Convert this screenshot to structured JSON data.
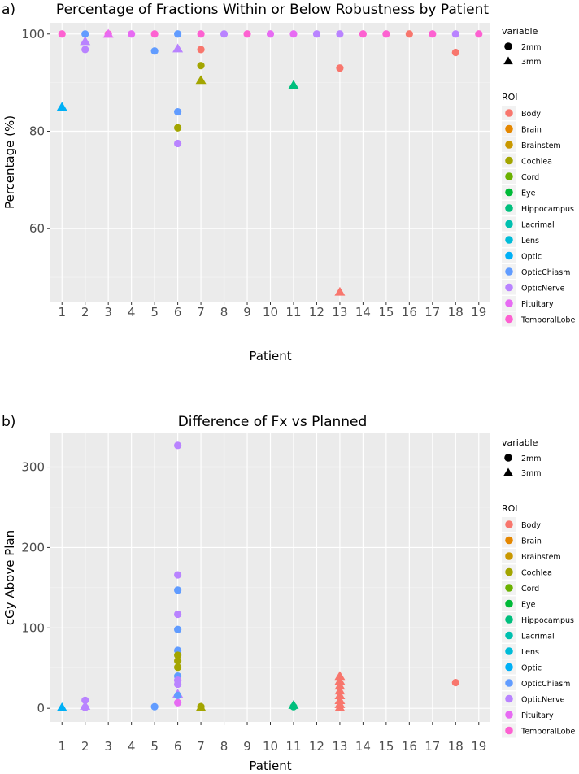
{
  "roi_colors": {
    "Body": "#F8766D",
    "Brain": "#E58700",
    "Brainstem": "#C99800",
    "Cochlea": "#A3A500",
    "Cord": "#6BB100",
    "Eye": "#00BA38",
    "Hippocampus": "#00BF7D",
    "Lacrimal": "#00C0AF",
    "Lens": "#00BCD8",
    "Optic": "#00B0F6",
    "OpticChiasm": "#619CFF",
    "OpticNerve": "#B983FF",
    "Pituitary": "#E76BF3",
    "TemporalLobe": "#FD61D1"
  },
  "chart_data": [
    {
      "type": "scatter",
      "panel_label": "a)",
      "title": "Percentage of Fractions Within or Below Robustness by Patient",
      "xlabel": "Patient",
      "ylabel": "Percentage (%)",
      "x_ticks": [
        "1",
        "2",
        "3",
        "4",
        "5",
        "6",
        "7",
        "8",
        "9",
        "10",
        "11",
        "12",
        "13",
        "14",
        "15",
        "16",
        "17",
        "18",
        "19"
      ],
      "y_ticks": [
        60,
        80,
        100
      ],
      "xlim": [
        0.5,
        19.5
      ],
      "ylim": [
        45,
        102.3
      ],
      "legend": {
        "shape_title": "variable",
        "shape_entries": [
          {
            "label": "2mm",
            "shape": "circle"
          },
          {
            "label": "3mm",
            "shape": "triangle"
          }
        ],
        "color_title": "ROI",
        "color_entries": [
          "Body",
          "Brain",
          "Brainstem",
          "Cochlea",
          "Cord",
          "Eye",
          "Hippocampus",
          "Lacrimal",
          "Lens",
          "Optic",
          "OpticChiasm",
          "OpticNerve",
          "Pituitary",
          "TemporalLobe"
        ]
      },
      "points": [
        {
          "x": 1,
          "y": 100,
          "roi": "TemporalLobe",
          "shape": "circle"
        },
        {
          "x": 1,
          "y": 85,
          "roi": "Optic",
          "shape": "triangle"
        },
        {
          "x": 2,
          "y": 100,
          "roi": "OpticChiasm",
          "shape": "circle"
        },
        {
          "x": 2,
          "y": 98.5,
          "roi": "OpticNerve",
          "shape": "triangle"
        },
        {
          "x": 2,
          "y": 96.8,
          "roi": "OpticNerve",
          "shape": "circle"
        },
        {
          "x": 3,
          "y": 100,
          "roi": "TemporalLobe",
          "shape": "circle"
        },
        {
          "x": 3,
          "y": 100,
          "roi": "Pituitary",
          "shape": "triangle"
        },
        {
          "x": 4,
          "y": 100,
          "roi": "Pituitary",
          "shape": "circle"
        },
        {
          "x": 5,
          "y": 100,
          "roi": "TemporalLobe",
          "shape": "circle"
        },
        {
          "x": 5,
          "y": 96.5,
          "roi": "OpticChiasm",
          "shape": "circle"
        },
        {
          "x": 6,
          "y": 100,
          "roi": "OpticChiasm",
          "shape": "circle"
        },
        {
          "x": 6,
          "y": 97,
          "roi": "OpticNerve",
          "shape": "triangle"
        },
        {
          "x": 6,
          "y": 84,
          "roi": "OpticChiasm",
          "shape": "circle"
        },
        {
          "x": 6,
          "y": 80.7,
          "roi": "Cochlea",
          "shape": "circle"
        },
        {
          "x": 6,
          "y": 77.5,
          "roi": "OpticNerve",
          "shape": "circle"
        },
        {
          "x": 7,
          "y": 100,
          "roi": "TemporalLobe",
          "shape": "circle"
        },
        {
          "x": 7,
          "y": 96.8,
          "roi": "Body",
          "shape": "circle"
        },
        {
          "x": 7,
          "y": 93.5,
          "roi": "Cochlea",
          "shape": "circle"
        },
        {
          "x": 7,
          "y": 90.5,
          "roi": "Cochlea",
          "shape": "triangle"
        },
        {
          "x": 8,
          "y": 100,
          "roi": "OpticNerve",
          "shape": "circle"
        },
        {
          "x": 9,
          "y": 100,
          "roi": "TemporalLobe",
          "shape": "circle"
        },
        {
          "x": 10,
          "y": 100,
          "roi": "Pituitary",
          "shape": "circle"
        },
        {
          "x": 11,
          "y": 100,
          "roi": "Pituitary",
          "shape": "circle"
        },
        {
          "x": 11,
          "y": 89.5,
          "roi": "Hippocampus",
          "shape": "triangle"
        },
        {
          "x": 12,
          "y": 100,
          "roi": "OpticNerve",
          "shape": "circle"
        },
        {
          "x": 13,
          "y": 100,
          "roi": "OpticNerve",
          "shape": "circle"
        },
        {
          "x": 13,
          "y": 93,
          "roi": "Body",
          "shape": "circle"
        },
        {
          "x": 13,
          "y": 47,
          "roi": "Body",
          "shape": "triangle"
        },
        {
          "x": 14,
          "y": 100,
          "roi": "TemporalLobe",
          "shape": "circle"
        },
        {
          "x": 15,
          "y": 100,
          "roi": "TemporalLobe",
          "shape": "circle"
        },
        {
          "x": 16,
          "y": 100,
          "roi": "Body",
          "shape": "circle"
        },
        {
          "x": 17,
          "y": 100,
          "roi": "TemporalLobe",
          "shape": "circle"
        },
        {
          "x": 18,
          "y": 100,
          "roi": "OpticNerve",
          "shape": "circle"
        },
        {
          "x": 18,
          "y": 96.2,
          "roi": "Body",
          "shape": "circle"
        },
        {
          "x": 19,
          "y": 100,
          "roi": "TemporalLobe",
          "shape": "circle"
        }
      ]
    },
    {
      "type": "scatter",
      "panel_label": "b)",
      "title": "Difference of Fx vs Planned",
      "xlabel": "Patient",
      "ylabel": "cGy Above Plan",
      "x_ticks": [
        "1",
        "2",
        "3",
        "4",
        "5",
        "6",
        "7",
        "8",
        "9",
        "10",
        "11",
        "12",
        "13",
        "14",
        "15",
        "16",
        "17",
        "18",
        "19"
      ],
      "y_ticks": [
        0,
        100,
        200,
        300
      ],
      "xlim": [
        0.5,
        19.5
      ],
      "ylim": [
        -17,
        342
      ],
      "legend": {
        "shape_title": "variable",
        "shape_entries": [
          {
            "label": "2mm",
            "shape": "circle"
          },
          {
            "label": "3mm",
            "shape": "triangle"
          }
        ],
        "color_title": "ROI",
        "color_entries": [
          "Body",
          "Brain",
          "Brainstem",
          "Cochlea",
          "Cord",
          "Eye",
          "Hippocampus",
          "Lacrimal",
          "Lens",
          "Optic",
          "OpticChiasm",
          "OpticNerve",
          "Pituitary",
          "TemporalLobe"
        ]
      },
      "points": [
        {
          "x": 1,
          "y": 1,
          "roi": "Optic",
          "shape": "triangle"
        },
        {
          "x": 2,
          "y": 10,
          "roi": "OpticNerve",
          "shape": "circle"
        },
        {
          "x": 2,
          "y": 3,
          "roi": "OpticNerve",
          "shape": "triangle"
        },
        {
          "x": 2,
          "y": 1,
          "roi": "OpticNerve",
          "shape": "circle"
        },
        {
          "x": 5,
          "y": 2,
          "roi": "OpticChiasm",
          "shape": "circle"
        },
        {
          "x": 6,
          "y": 327,
          "roi": "OpticNerve",
          "shape": "circle"
        },
        {
          "x": 6,
          "y": 166,
          "roi": "OpticNerve",
          "shape": "circle"
        },
        {
          "x": 6,
          "y": 147,
          "roi": "OpticChiasm",
          "shape": "circle"
        },
        {
          "x": 6,
          "y": 117,
          "roi": "OpticNerve",
          "shape": "circle"
        },
        {
          "x": 6,
          "y": 98,
          "roi": "OpticChiasm",
          "shape": "circle"
        },
        {
          "x": 6,
          "y": 72,
          "roi": "OpticChiasm",
          "shape": "circle"
        },
        {
          "x": 6,
          "y": 66,
          "roi": "Cochlea",
          "shape": "circle"
        },
        {
          "x": 6,
          "y": 59,
          "roi": "Cochlea",
          "shape": "circle"
        },
        {
          "x": 6,
          "y": 51,
          "roi": "Cochlea",
          "shape": "circle"
        },
        {
          "x": 6,
          "y": 40,
          "roi": "OpticChiasm",
          "shape": "circle"
        },
        {
          "x": 6,
          "y": 35,
          "roi": "OpticNerve",
          "shape": "circle"
        },
        {
          "x": 6,
          "y": 30,
          "roi": "OpticNerve",
          "shape": "circle"
        },
        {
          "x": 6,
          "y": 18,
          "roi": "OpticNerve",
          "shape": "triangle"
        },
        {
          "x": 6,
          "y": 16,
          "roi": "OpticChiasm",
          "shape": "circle"
        },
        {
          "x": 6,
          "y": 7,
          "roi": "Pituitary",
          "shape": "circle"
        },
        {
          "x": 7,
          "y": 2,
          "roi": "Cochlea",
          "shape": "circle"
        },
        {
          "x": 7,
          "y": 1,
          "roi": "Cochlea",
          "shape": "triangle"
        },
        {
          "x": 11,
          "y": 4,
          "roi": "Hippocampus",
          "shape": "triangle"
        },
        {
          "x": 11,
          "y": 2,
          "roi": "Hippocampus",
          "shape": "circle"
        },
        {
          "x": 13,
          "y": 40,
          "roi": "Body",
          "shape": "triangle"
        },
        {
          "x": 13,
          "y": 34,
          "roi": "Body",
          "shape": "triangle"
        },
        {
          "x": 13,
          "y": 28,
          "roi": "Body",
          "shape": "triangle"
        },
        {
          "x": 13,
          "y": 22,
          "roi": "Body",
          "shape": "triangle"
        },
        {
          "x": 13,
          "y": 16,
          "roi": "Body",
          "shape": "triangle"
        },
        {
          "x": 13,
          "y": 10,
          "roi": "Body",
          "shape": "triangle"
        },
        {
          "x": 13,
          "y": 5,
          "roi": "Body",
          "shape": "triangle"
        },
        {
          "x": 13,
          "y": 1,
          "roi": "Body",
          "shape": "triangle"
        },
        {
          "x": 18,
          "y": 32,
          "roi": "Body",
          "shape": "circle"
        }
      ]
    }
  ]
}
